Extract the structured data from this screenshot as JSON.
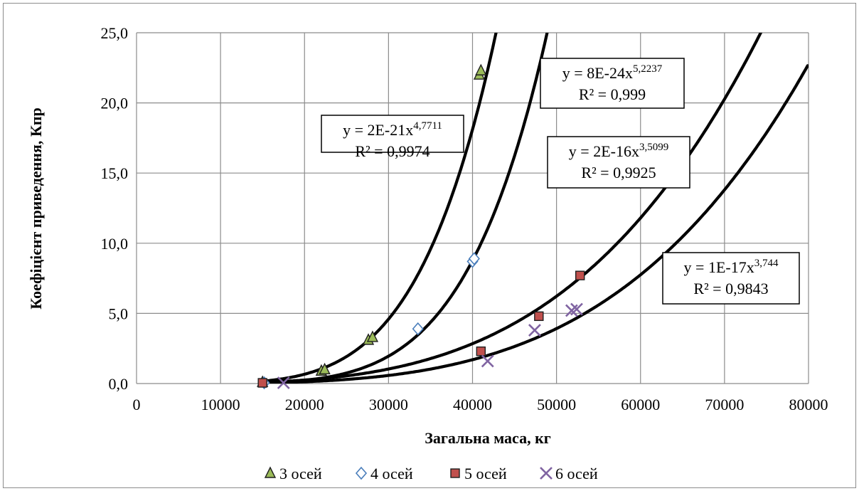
{
  "chart_data": {
    "type": "scatter",
    "xlabel": "Загальна маса, кг",
    "ylabel": "Коефіцієнт приведення, Кпр",
    "xlim": [
      0,
      80000
    ],
    "ylim": [
      0,
      25
    ],
    "x_ticks": [
      "0",
      "10000",
      "20000",
      "30000",
      "40000",
      "50000",
      "60000",
      "70000",
      "80000"
    ],
    "y_ticks": [
      "0,0",
      "5,0",
      "10,0",
      "15,0",
      "20,0",
      "25,0"
    ],
    "grid": true,
    "legend_position": "bottom",
    "series": [
      {
        "name": "3 осей",
        "marker": "triangle",
        "color": "#9bbb59",
        "x": [
          15000,
          22000,
          22400,
          27600,
          28100,
          40800,
          41000
        ],
        "y": [
          0.1,
          0.9,
          1.0,
          3.1,
          3.3,
          22.0,
          22.3
        ],
        "trendline": {
          "coef": 2e-21,
          "exp": 4.7711,
          "equation_prefix": "y = 2E-21x",
          "equation_exp": "4,7711",
          "r2": "R² = 0,9974"
        }
      },
      {
        "name": "4 осей",
        "marker": "diamond",
        "color": "#4a7ebb",
        "x": [
          15200,
          33500,
          40000,
          40200
        ],
        "y": [
          0.05,
          3.9,
          8.7,
          8.9
        ],
        "trendline": {
          "coef": 8e-24,
          "exp": 5.2237,
          "equation_prefix": "y = 8E-24x",
          "equation_exp": "5,2237",
          "r2": "R² = 0,999"
        }
      },
      {
        "name": "5 осей",
        "marker": "square",
        "color": "#c0504d",
        "x": [
          15000,
          41000,
          47900,
          52800
        ],
        "y": [
          0.05,
          2.3,
          4.8,
          7.7
        ],
        "trendline": {
          "coef": 2e-16,
          "exp": 3.5099,
          "equation_prefix": "y = 2E-16x",
          "equation_exp": "3,5099",
          "r2": "R² = 0,9925"
        }
      },
      {
        "name": "6 осей",
        "marker": "x",
        "color": "#8064a2",
        "x": [
          17500,
          41800,
          47400,
          51800,
          52400
        ],
        "y": [
          0.05,
          1.6,
          3.8,
          5.2,
          5.3
        ],
        "trendline": {
          "coef": 1e-17,
          "exp": 3.744,
          "equation_prefix": "y = 1E-17x",
          "equation_exp": "3,744",
          "r2": "R² = 0,9843"
        }
      }
    ]
  }
}
